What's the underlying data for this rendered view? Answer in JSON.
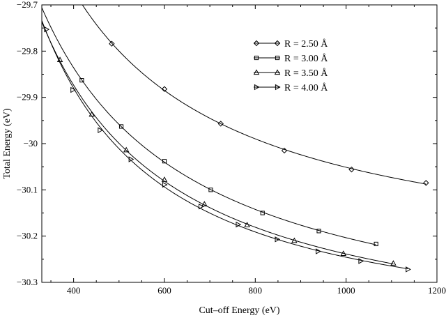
{
  "chart_data": {
    "type": "line",
    "xlabel": "Cut–off Energy (eV)",
    "ylabel": "Total Energy (eV)",
    "xlim": [
      330,
      1200
    ],
    "ylim": [
      -30.3,
      -29.7
    ],
    "xticks": [
      400,
      600,
      800,
      1000,
      1200
    ],
    "xtick_labels": [
      "400",
      "600",
      "800",
      "1000",
      "1200"
    ],
    "yticks": [
      -29.7,
      -29.8,
      -29.9,
      -30.0,
      -30.1,
      -30.2,
      -30.3
    ],
    "ytick_labels": [
      "−29.7",
      "−29.8",
      "−29.9",
      "−30",
      "−30.1",
      "−30.2",
      "−30.3"
    ],
    "grid": false,
    "legend_position": "top-right",
    "series": [
      {
        "name": "R = 2.50 Å",
        "marker": "diamond",
        "x": [
          484,
          600,
          724,
          864,
          1012,
          1176
        ],
        "y": [
          -29.784,
          -29.882,
          -29.957,
          -30.015,
          -30.056,
          -30.085
        ]
      },
      {
        "name": "R = 3.00 Å",
        "marker": "square",
        "x": [
          418,
          505,
          600,
          702,
          816,
          940,
          1066
        ],
        "y": [
          -29.863,
          -29.963,
          -30.038,
          -30.1,
          -30.15,
          -30.189,
          -30.217
        ]
      },
      {
        "name": "R = 3.50 Å",
        "marker": "triangle-up",
        "x": [
          370,
          440,
          516,
          600,
          688,
          782,
          886,
          994,
          1104
        ],
        "y": [
          -29.819,
          -29.937,
          -30.014,
          -30.078,
          -30.131,
          -30.176,
          -30.21,
          -30.238,
          -30.259
        ]
      },
      {
        "name": "R = 4.00 Å",
        "marker": "triangle-right",
        "x": [
          340,
          398,
          458,
          526,
          600,
          680,
          762,
          848,
          938,
          1032,
          1136
        ],
        "y": [
          -29.753,
          -29.884,
          -29.971,
          -30.034,
          -30.089,
          -30.136,
          -30.175,
          -30.207,
          -30.233,
          -30.254,
          -30.272
        ]
      }
    ]
  }
}
